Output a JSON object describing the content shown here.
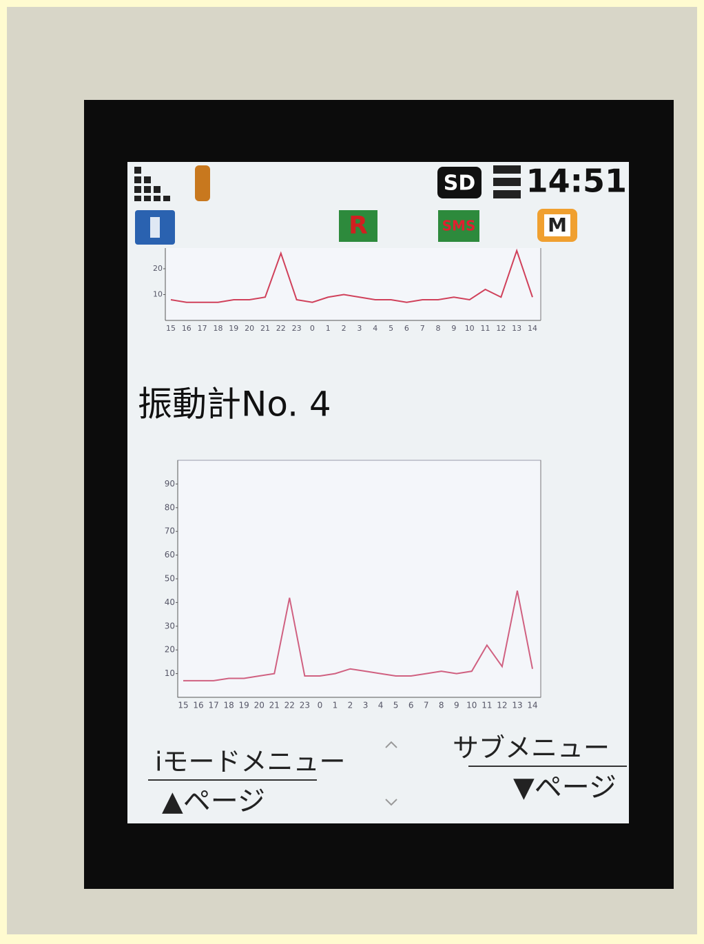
{
  "status_bar": {
    "time": "14:51",
    "sd": "SD",
    "icons": [
      "R",
      "SMS",
      "M"
    ]
  },
  "charts": [
    {
      "type": "line",
      "color": "#d0405a",
      "categories": [
        "15",
        "16",
        "17",
        "18",
        "19",
        "20",
        "21",
        "22",
        "23",
        "0",
        "1",
        "2",
        "3",
        "4",
        "5",
        "6",
        "7",
        "8",
        "9",
        "10",
        "11",
        "12",
        "13",
        "14"
      ],
      "values": [
        8,
        7,
        7,
        7,
        8,
        8,
        9,
        26,
        8,
        7,
        9,
        10,
        9,
        8,
        8,
        7,
        8,
        8,
        9,
        8,
        12,
        9,
        27,
        9
      ],
      "ylim": [
        0,
        28
      ],
      "yticks": [
        10,
        20
      ]
    },
    {
      "type": "line",
      "color": "#d06080",
      "categories": [
        "15",
        "16",
        "17",
        "18",
        "19",
        "20",
        "21",
        "22",
        "23",
        "0",
        "1",
        "2",
        "3",
        "4",
        "5",
        "6",
        "7",
        "8",
        "9",
        "10",
        "11",
        "12",
        "13",
        "14"
      ],
      "values": [
        7,
        7,
        7,
        8,
        8,
        9,
        10,
        42,
        9,
        9,
        10,
        12,
        11,
        10,
        9,
        9,
        10,
        11,
        10,
        11,
        22,
        13,
        45,
        12
      ],
      "ylim": [
        0,
        100
      ],
      "yticks": [
        10,
        20,
        30,
        40,
        50,
        60,
        70,
        80,
        90
      ]
    }
  ],
  "title": "振動計No. 4",
  "softkeys": {
    "left_top": "iモードメニュー",
    "left_bottom": "▲ページ",
    "right_top": "サブメニュー",
    "right_bottom": "▼ページ"
  }
}
